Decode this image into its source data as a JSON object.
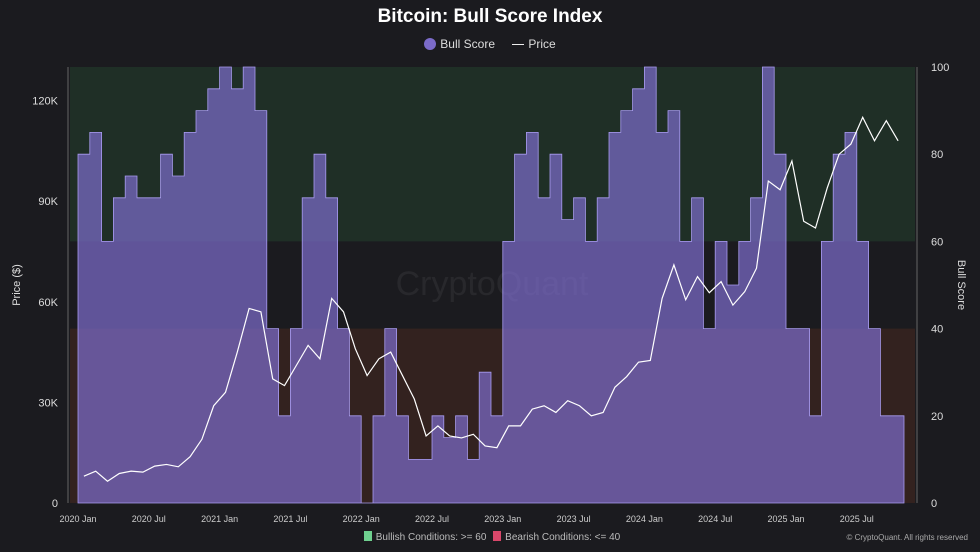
{
  "chart_data": {
    "type": "line",
    "title": "Bitcoin: Bull Score Index",
    "legend": [
      "Bull Score",
      "Price"
    ],
    "ylabel_left": "Price ($)",
    "ylabel_right": "Bull Score",
    "ylim_left": [
      0,
      130000
    ],
    "ylim_right": [
      0,
      100
    ],
    "yticks_left": [
      "0",
      "30K",
      "60K",
      "90K",
      "120K"
    ],
    "yticks_right": [
      "0",
      "20",
      "40",
      "60",
      "80",
      "100"
    ],
    "xticks": [
      "2020 Jan",
      "2020 Jul",
      "2021 Jan",
      "2021 Jul",
      "2022 Jan",
      "2022 Jul",
      "2023 Jan",
      "2023 Jul",
      "2024 Jan",
      "2024 Jul",
      "2025 Jan",
      "2025 Jul"
    ],
    "x_start": "2020-01",
    "x_end": "2025-10",
    "bands": [
      {
        "label": "Bullish Conditions: >= 60",
        "min": 60,
        "max": 100,
        "color": "#3fae6a"
      },
      {
        "label": "Bearish Conditions: <= 40",
        "min": 0,
        "max": 40,
        "color": "#d9476a"
      }
    ],
    "price_monthly_k": [
      8,
      9.5,
      6.5,
      8.8,
      9.5,
      9.2,
      11,
      11.5,
      10.8,
      13.8,
      19,
      29,
      33,
      45,
      58,
      57,
      37,
      35,
      41,
      47,
      43,
      61,
      57,
      46,
      38,
      43,
      45,
      38,
      31,
      20,
      23,
      20,
      19.4,
      20.5,
      17,
      16.5,
      23,
      23,
      28,
      29,
      27,
      30.5,
      29,
      26,
      27,
      34.5,
      37.7,
      42,
      42.5,
      61,
      71,
      60.6,
      67.5,
      62.7,
      66,
      59,
      63,
      70,
      96,
      93.4,
      102,
      84,
      82,
      94,
      104,
      107,
      115,
      108,
      114,
      108
    ],
    "bull_score_monthly": [
      80,
      85,
      60,
      70,
      75,
      70,
      70,
      80,
      75,
      85,
      90,
      95,
      100,
      95,
      100,
      90,
      40,
      20,
      40,
      70,
      80,
      70,
      40,
      20,
      0,
      20,
      40,
      20,
      10,
      10,
      20,
      15,
      20,
      10,
      30,
      20,
      60,
      80,
      85,
      70,
      80,
      65,
      70,
      60,
      70,
      85,
      90,
      95,
      100,
      85,
      90,
      60,
      70,
      40,
      60,
      50,
      60,
      70,
      100,
      80,
      40,
      40,
      20,
      60,
      80,
      85,
      60,
      40,
      20,
      20
    ],
    "colors": {
      "bull_score": "#7b6bc9",
      "price": "#ffffff"
    }
  },
  "footer": {
    "bullish": "Bullish Conditions: >= 60",
    "bearish": "Bearish Conditions: <= 40",
    "copyright": "© CryptoQuant. All rights reserved",
    "watermark": "CryptoQuant"
  }
}
